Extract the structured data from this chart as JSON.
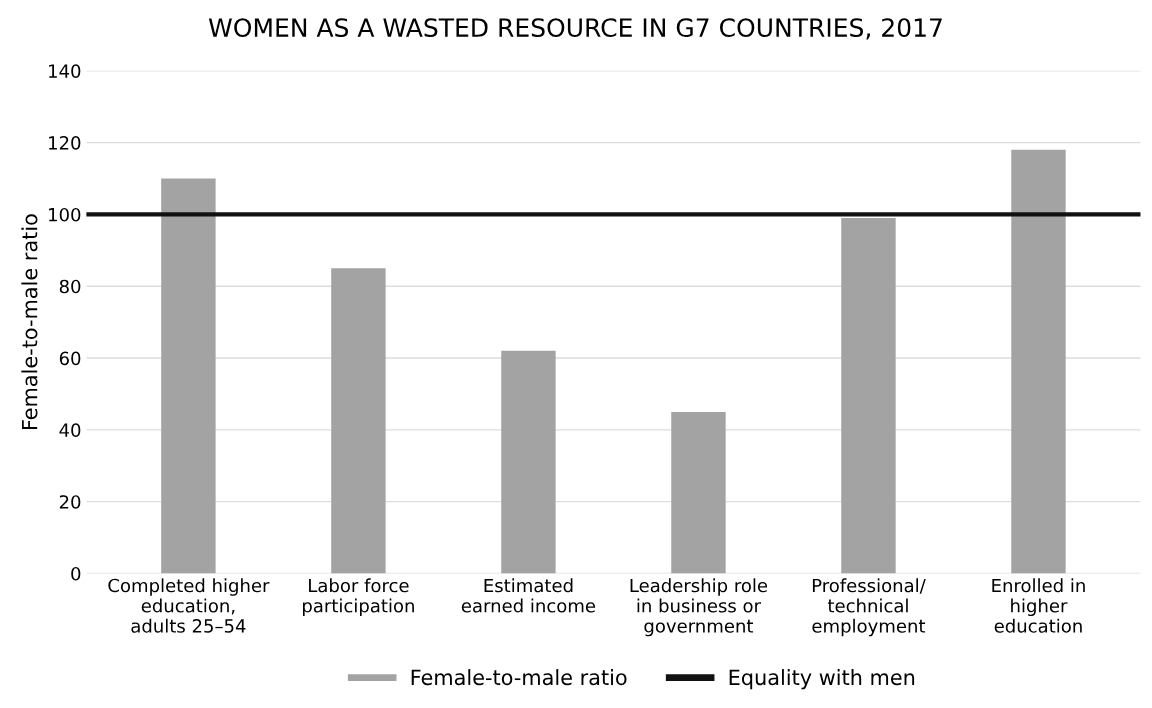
{
  "chart_data": {
    "type": "bar",
    "title": "WOMEN AS A WASTED RESOURCE IN G7 COUNTRIES, 2017",
    "ylabel": "Female-to-male ratio",
    "categories": [
      "Completed higher\neducation,\nadults 25–54",
      "Labor force\nparticipation",
      "Estimated\nearned income",
      "Leadership role\nin business or\ngovernment",
      "Professional/\ntechnical\nemployment",
      "Enrolled in\nhigher\neducation"
    ],
    "series": [
      {
        "name": "Female-to-male ratio",
        "color": "#a3a3a3",
        "values": [
          110,
          85,
          62,
          45,
          99,
          118
        ]
      }
    ],
    "ref_lines": [
      {
        "axis": "y",
        "value": 100,
        "label": "Equality with men",
        "color": "#111111",
        "line_style": "solid"
      }
    ],
    "ylim": [
      0,
      140
    ],
    "yticks": [
      0,
      20,
      40,
      60,
      80,
      100,
      120,
      140
    ],
    "grid": "y",
    "legend": "bottom"
  }
}
